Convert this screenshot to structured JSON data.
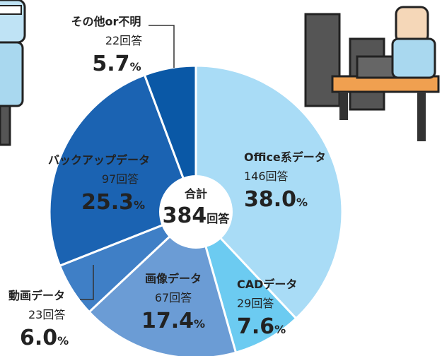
{
  "chart_data": {
    "type": "pie",
    "categories": [
      "Office系データ",
      "CADデータ",
      "画像データ",
      "動画データ",
      "バックアップデータ",
      "その他or不明"
    ],
    "values": [
      38.0,
      7.6,
      17.4,
      6.0,
      25.3,
      5.7
    ],
    "value_labels": [
      "38.0%",
      "7.6%",
      "17.4%",
      "6.0%",
      "25.3%",
      "5.7%"
    ],
    "counts": [
      146,
      29,
      67,
      23,
      97,
      22
    ],
    "count_labels": [
      "146回答",
      "29回答",
      "67回答",
      "23回答",
      "97回答",
      "22回答"
    ],
    "colors": [
      "#a9dcf6",
      "#6ccbf1",
      "#6b9cd5",
      "#3f7fc6",
      "#1b63b2",
      "#0a58a6"
    ],
    "center_title": "合計",
    "center_value": "384回答"
  }
}
